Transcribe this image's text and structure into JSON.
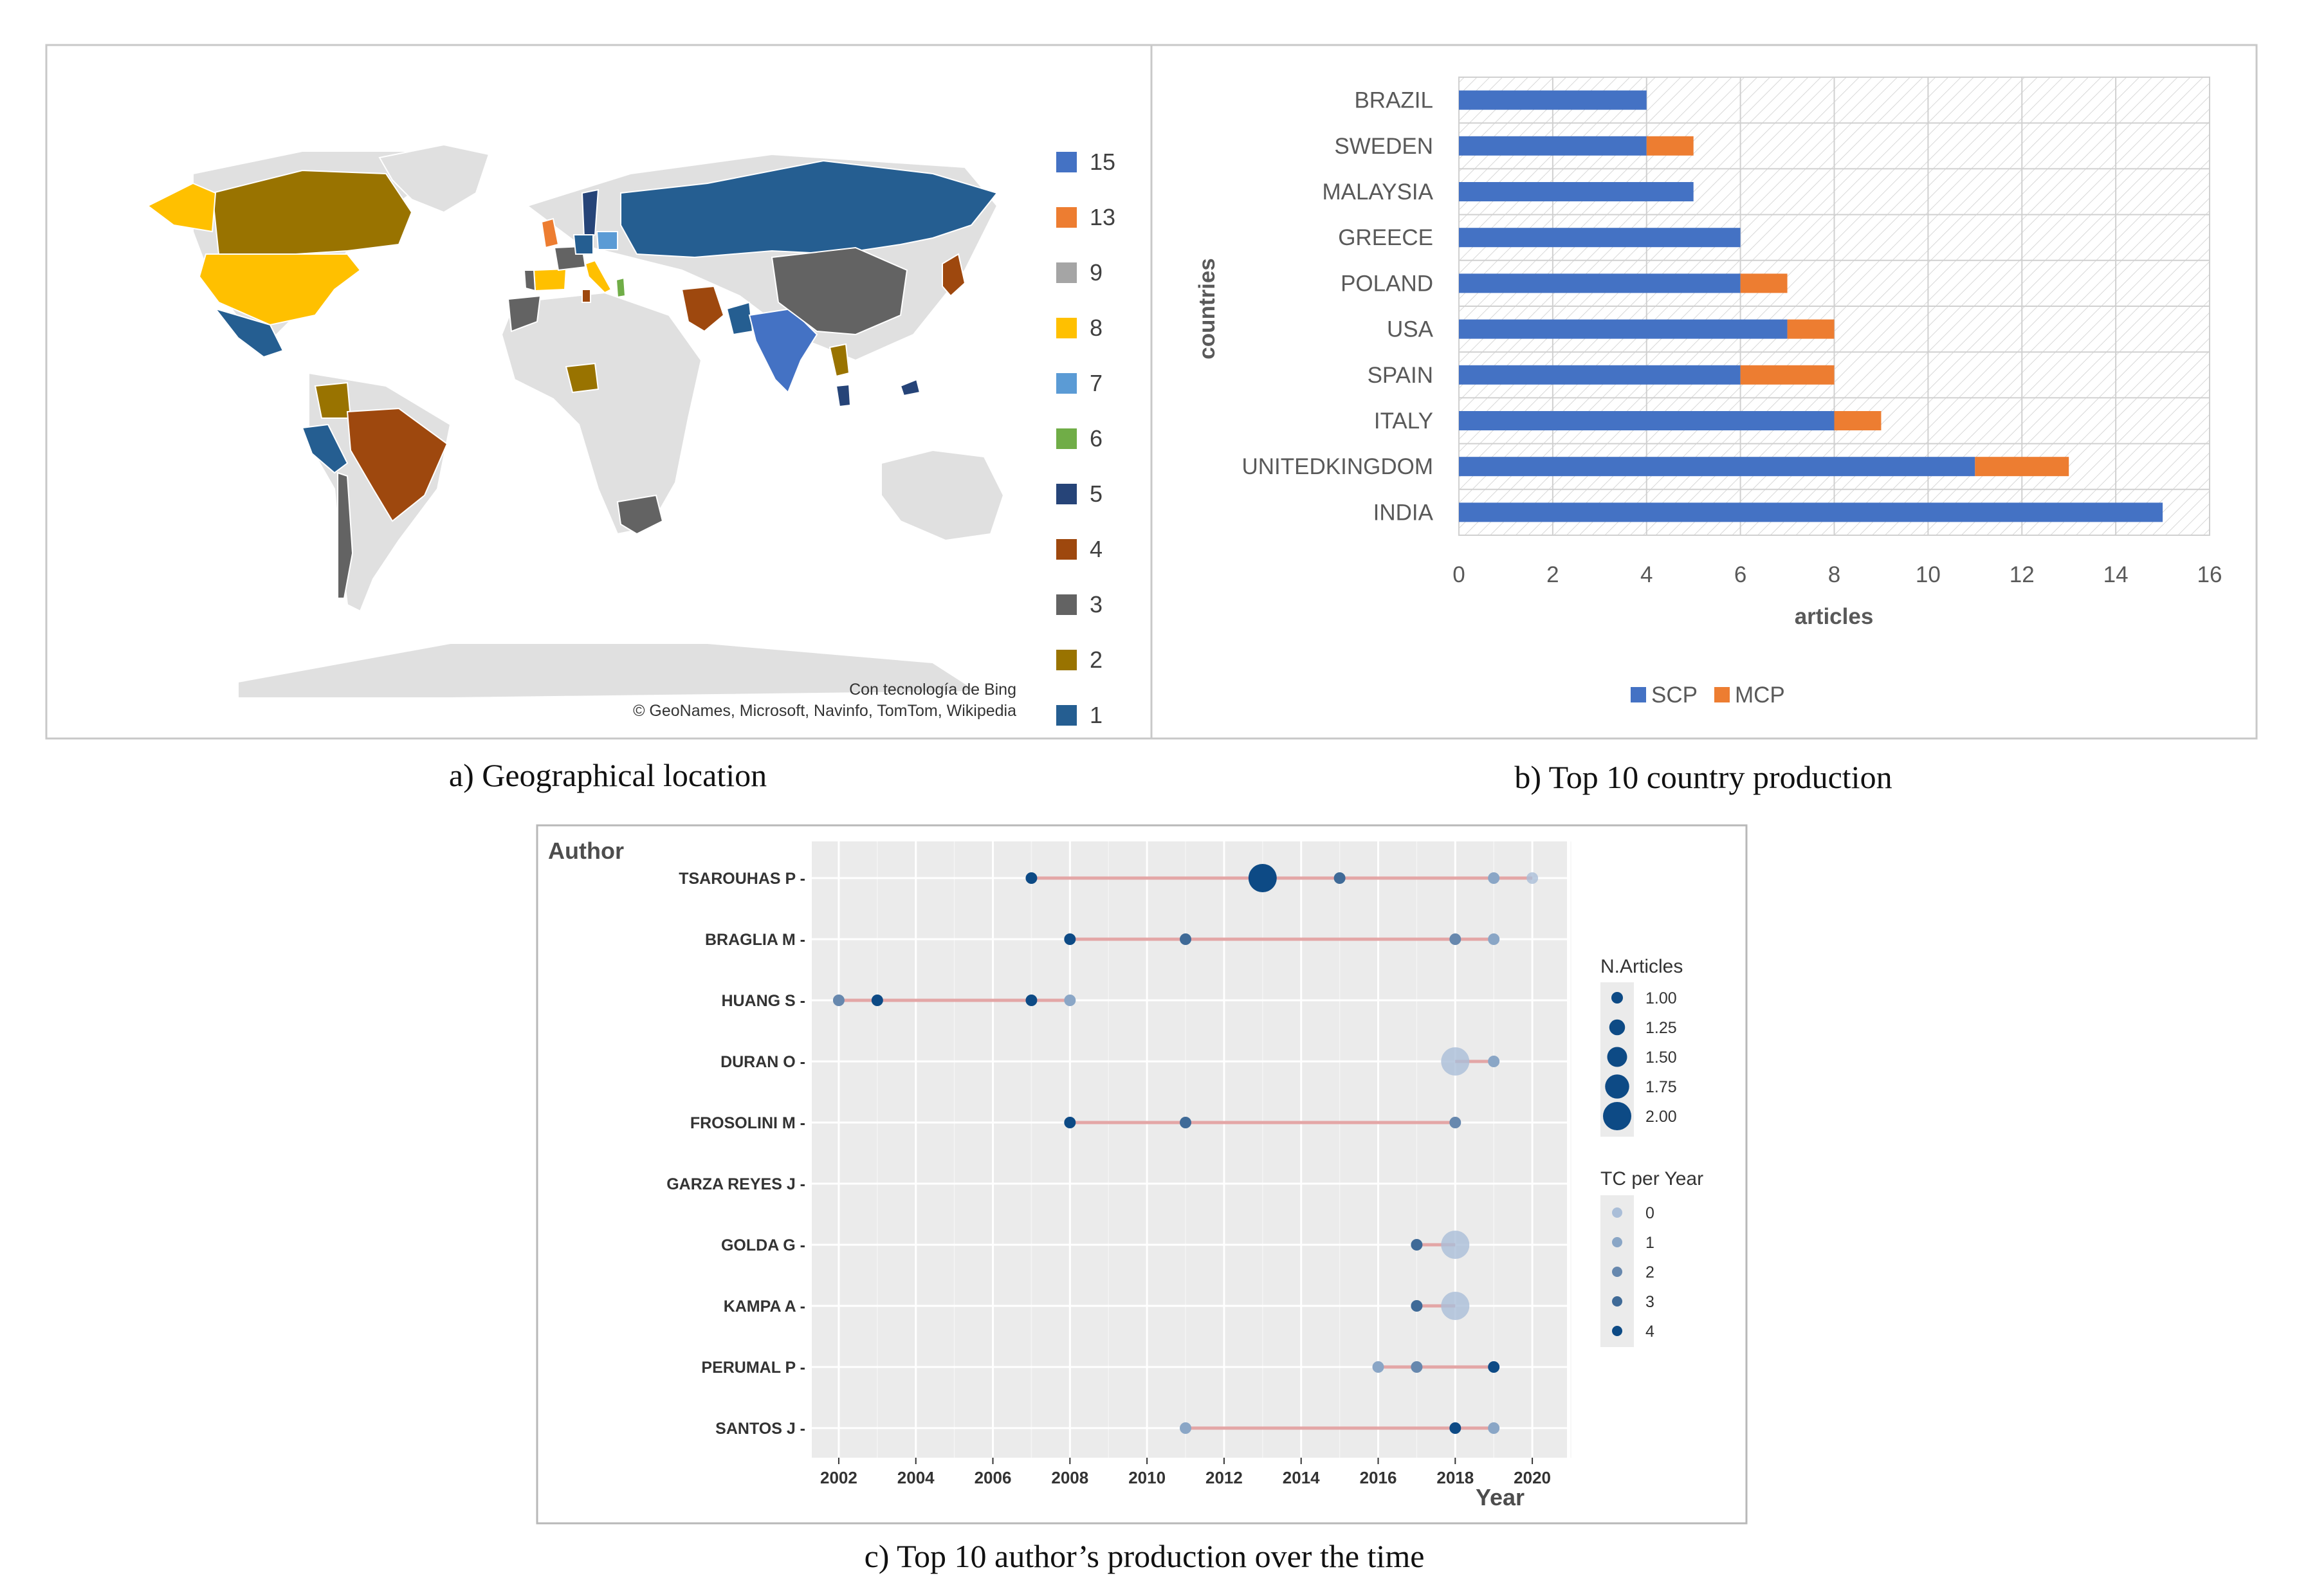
{
  "panel_a": {
    "caption": "a) Geographical location",
    "legend_values": [
      "15",
      "13",
      "9",
      "8",
      "7",
      "6",
      "5",
      "4",
      "3",
      "2",
      "1"
    ],
    "legend_colors": [
      "#4472c4",
      "#ed7d31",
      "#a5a5a5",
      "#ffc000",
      "#5b9bd5",
      "#70ad47",
      "#264478",
      "#9e480e",
      "#636363",
      "#997300",
      "#255e91"
    ],
    "attribution_line1": "Con tecnología de Bing",
    "attribution_line2": "© GeoNames, Microsoft, Navinfo, TomTom, Wikipedia"
  },
  "panel_b": {
    "caption": "b) Top 10 country production"
  },
  "panel_c": {
    "caption": "c) Top 10 author’s production over the time"
  },
  "chart_data": [
    {
      "type": "bar",
      "orientation": "horizontal",
      "stacked": true,
      "categories": [
        "BRAZIL",
        "SWEDEN",
        "MALAYSIA",
        "GREECE",
        "POLAND",
        "USA",
        "SPAIN",
        "ITALY",
        "UNITEDKINGDOM",
        "INDIA"
      ],
      "series": [
        {
          "name": "SCP",
          "color": "#4472c4",
          "values": [
            4,
            4,
            5,
            6,
            6,
            7,
            6,
            8,
            11,
            15
          ]
        },
        {
          "name": "MCP",
          "color": "#ed7d31",
          "values": [
            0,
            1,
            0,
            0,
            1,
            1,
            2,
            1,
            2,
            0
          ]
        }
      ],
      "xlabel": "articles",
      "ylabel": "countries",
      "xlim": [
        0,
        16
      ],
      "xticks": [
        0,
        2,
        4,
        6,
        8,
        10,
        12,
        14,
        16
      ],
      "legend": "bottom"
    },
    {
      "type": "scatter",
      "title": "",
      "xlabel": "Year",
      "ylabel": "Author",
      "xlim": [
        2001.3,
        2020.9
      ],
      "xticks": [
        2002,
        2004,
        2006,
        2008,
        2010,
        2012,
        2014,
        2016,
        2018,
        2020
      ],
      "authors": [
        "TSAROUHAS P",
        "BRAGLIA M",
        "HUANG S",
        "DURAN O",
        "FROSOLINI M",
        "GARZA REYES J",
        "GOLDA G",
        "KAMPA A",
        "PERUMAL P",
        "SANTOS J"
      ],
      "points": [
        {
          "author": "TSAROUHAS P",
          "year": 2007,
          "n": 1,
          "tc": 4
        },
        {
          "author": "TSAROUHAS P",
          "year": 2013,
          "n": 2,
          "tc": 4
        },
        {
          "author": "TSAROUHAS P",
          "year": 2015,
          "n": 1,
          "tc": 3
        },
        {
          "author": "TSAROUHAS P",
          "year": 2019,
          "n": 1,
          "tc": 1
        },
        {
          "author": "TSAROUHAS P",
          "year": 2020,
          "n": 1,
          "tc": 0
        },
        {
          "author": "BRAGLIA M",
          "year": 2008,
          "n": 1,
          "tc": 4
        },
        {
          "author": "BRAGLIA M",
          "year": 2011,
          "n": 1,
          "tc": 3
        },
        {
          "author": "BRAGLIA M",
          "year": 2018,
          "n": 1,
          "tc": 2
        },
        {
          "author": "BRAGLIA M",
          "year": 2019,
          "n": 1,
          "tc": 1
        },
        {
          "author": "HUANG S",
          "year": 2002,
          "n": 1,
          "tc": 2
        },
        {
          "author": "HUANG S",
          "year": 2003,
          "n": 1,
          "tc": 4
        },
        {
          "author": "HUANG S",
          "year": 2007,
          "n": 1,
          "tc": 4
        },
        {
          "author": "HUANG S",
          "year": 2008,
          "n": 1,
          "tc": 1
        },
        {
          "author": "DURAN O",
          "year": 2018,
          "n": 2,
          "tc": 0
        },
        {
          "author": "DURAN O",
          "year": 2019,
          "n": 1,
          "tc": 1
        },
        {
          "author": "FROSOLINI M",
          "year": 2008,
          "n": 1,
          "tc": 4
        },
        {
          "author": "FROSOLINI M",
          "year": 2011,
          "n": 1,
          "tc": 3
        },
        {
          "author": "FROSOLINI M",
          "year": 2018,
          "n": 1,
          "tc": 2
        },
        {
          "author": "GOLDA G",
          "year": 2017,
          "n": 1,
          "tc": 3
        },
        {
          "author": "GOLDA G",
          "year": 2018,
          "n": 2,
          "tc": 0
        },
        {
          "author": "KAMPA A",
          "year": 2017,
          "n": 1,
          "tc": 3
        },
        {
          "author": "KAMPA A",
          "year": 2018,
          "n": 2,
          "tc": 0
        },
        {
          "author": "PERUMAL P",
          "year": 2016,
          "n": 1,
          "tc": 1
        },
        {
          "author": "PERUMAL P",
          "year": 2017,
          "n": 1,
          "tc": 2
        },
        {
          "author": "PERUMAL P",
          "year": 2019,
          "n": 1,
          "tc": 4
        },
        {
          "author": "SANTOS J",
          "year": 2011,
          "n": 1,
          "tc": 1
        },
        {
          "author": "SANTOS J",
          "year": 2018,
          "n": 1,
          "tc": 4
        },
        {
          "author": "SANTOS J",
          "year": 2019,
          "n": 1,
          "tc": 1
        }
      ],
      "size_legend_title": "N.Articles",
      "size_legend_values": [
        "1.00",
        "1.25",
        "1.50",
        "1.75",
        "2.00"
      ],
      "color_legend_title": "TC per Year",
      "color_legend_values": [
        "0",
        "1",
        "2",
        "3",
        "4"
      ]
    }
  ]
}
